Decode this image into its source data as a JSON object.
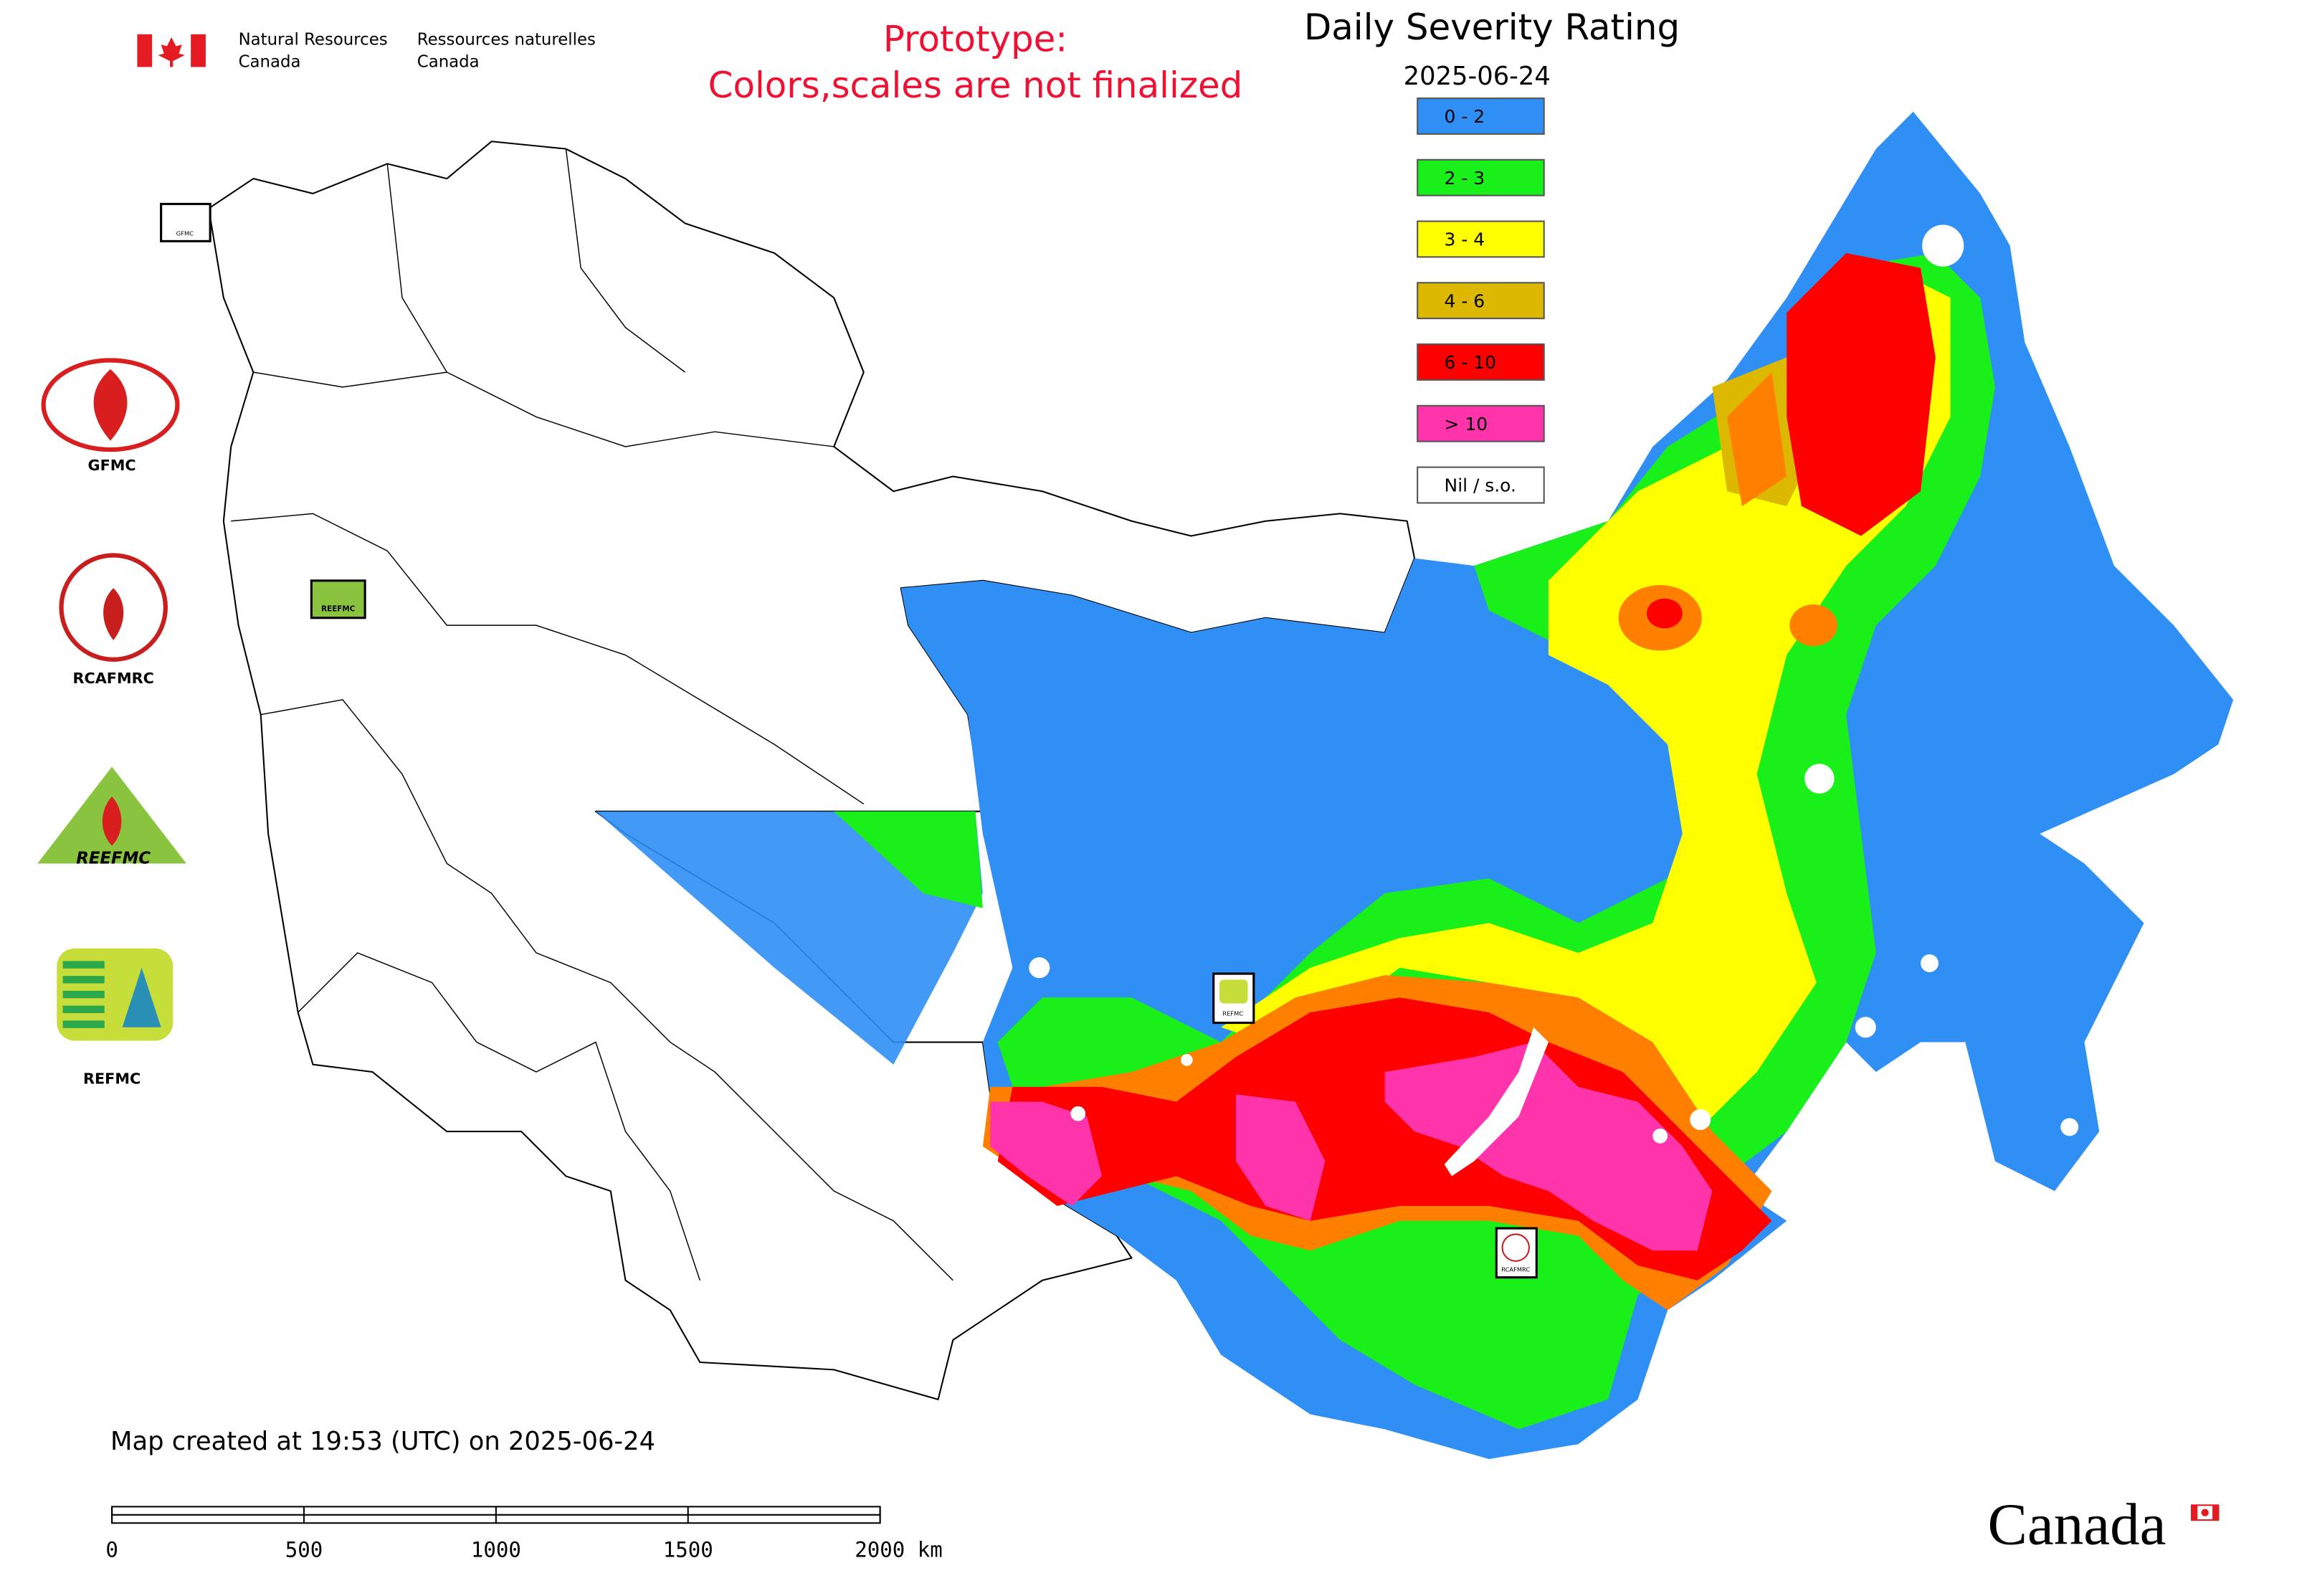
{
  "header": {
    "agency_en": [
      "Natural Resources",
      "Canada"
    ],
    "agency_fr": [
      "Ressources naturelles",
      "Canada"
    ],
    "notice": [
      "Prototype:",
      "Colors,scales are not finalized"
    ]
  },
  "legend": {
    "title": "Daily Severity Rating",
    "date": "2025-06-24",
    "items": [
      {
        "label": "0 - 2",
        "color": "#2f8ff5"
      },
      {
        "label": "2 - 3",
        "color": "#19f019"
      },
      {
        "label": "3 - 4",
        "color": "#ffff00"
      },
      {
        "label": "4 - 6",
        "color": "#dcb800"
      },
      {
        "label": "6 - 10",
        "color": "#ff0000"
      },
      {
        "label": "> 10",
        "color": "#ff33aa"
      },
      {
        "label": "Nil / s.o.",
        "color": "#ffffff"
      }
    ]
  },
  "logos": [
    "GFMC",
    "RCAFMRC",
    "REEFMC",
    "REFMC"
  ],
  "footer": {
    "created": "Map created at 19:53 (UTC) on 2025-06-24",
    "scale_bar": {
      "ticks": [
        0,
        500,
        1000,
        1500,
        {
          "value": 2000,
          "label": "2000 km"
        }
      ]
    },
    "wordmark": "Canada"
  }
}
